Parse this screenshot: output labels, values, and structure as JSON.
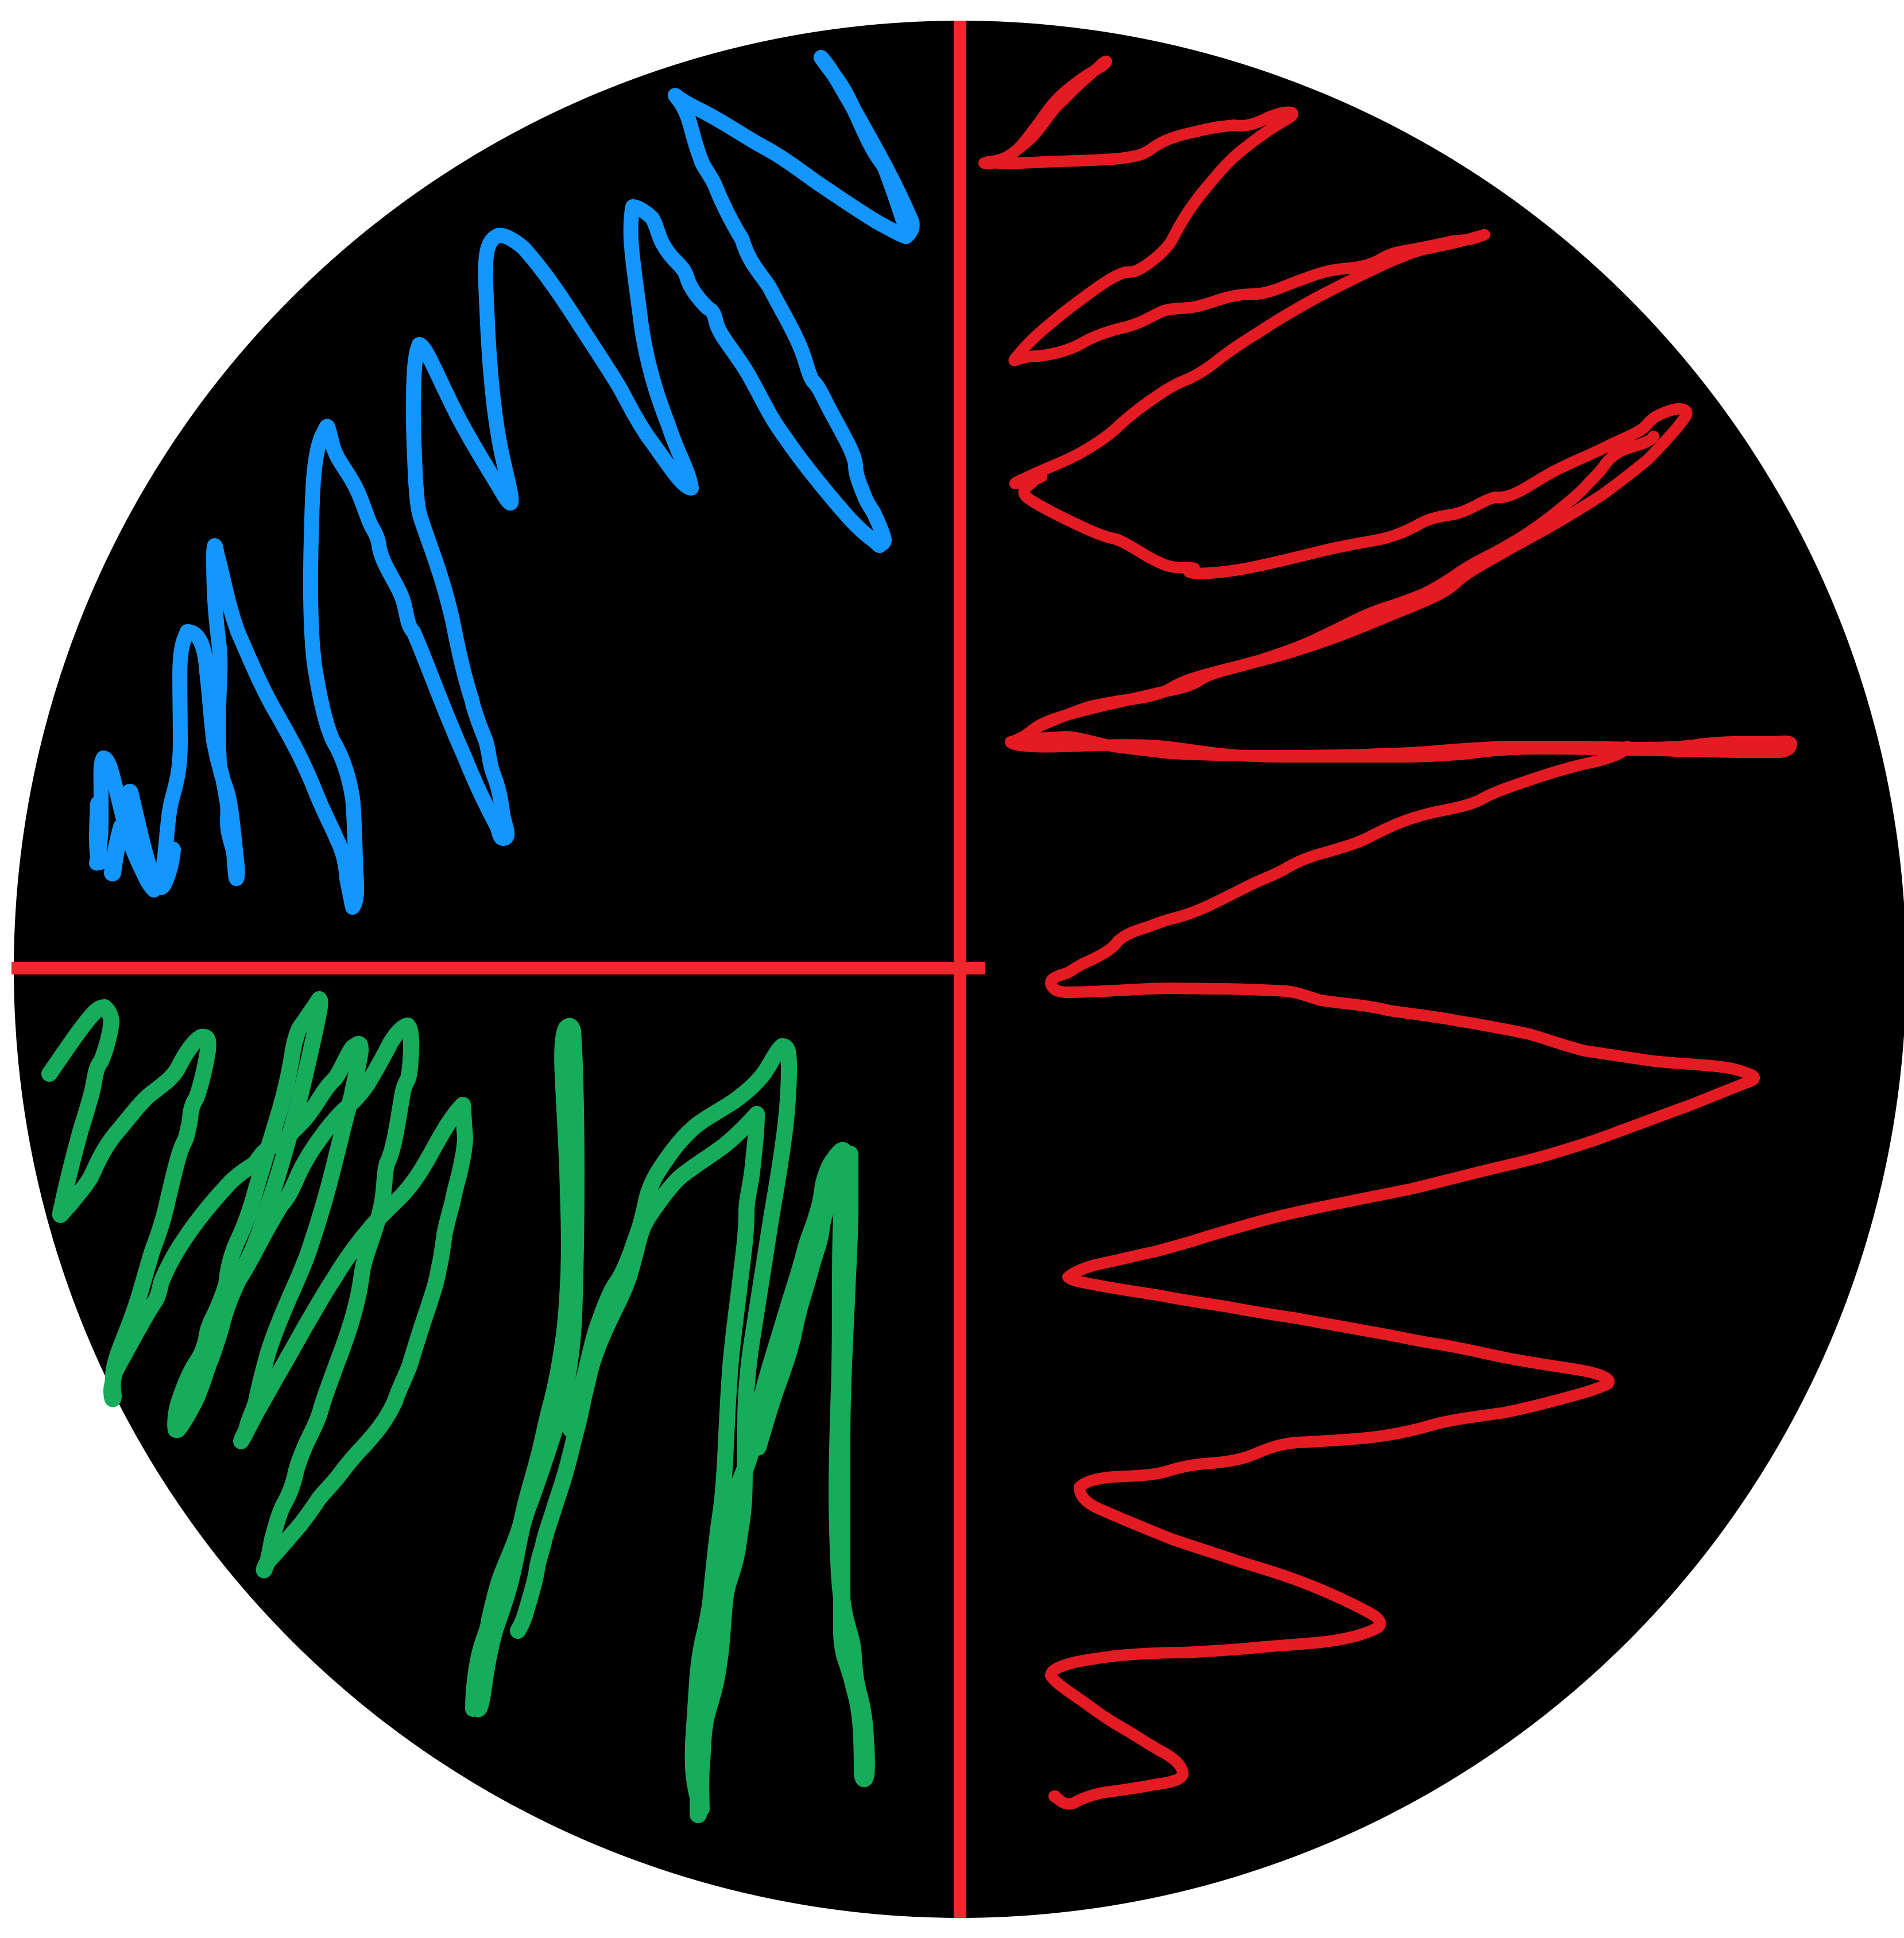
{
  "colors": {
    "background": "#ffffff",
    "disc": "#000000",
    "divider": "#f0282d",
    "blue_region": "#1496ff",
    "green_region": "#16ac5c",
    "red_region": "#e51b24"
  },
  "regions": [
    {
      "name": "top-left",
      "color_key": "blue_region"
    },
    {
      "name": "bottom-left",
      "color_key": "green_region"
    },
    {
      "name": "right-half",
      "color_key": "red_region"
    }
  ]
}
